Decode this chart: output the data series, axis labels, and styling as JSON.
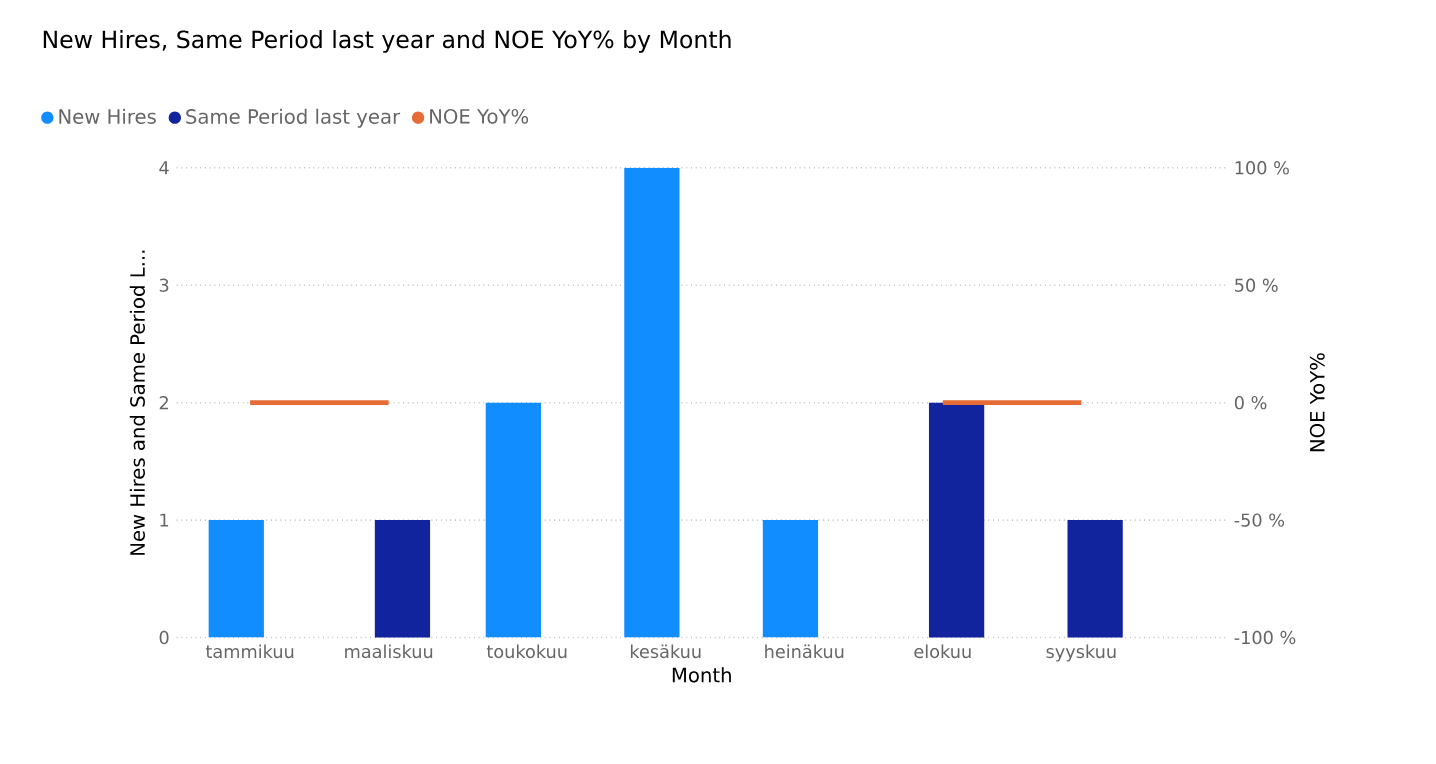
{
  "chart_data": {
    "type": "bar",
    "title": "New Hires, Same Period last year and NOE YoY% by Month",
    "xlabel": "Month",
    "ylabel": "New Hires and Same Period L...",
    "y2label": "NOE YoY%",
    "categories": [
      "tammikuu",
      "maaliskuu",
      "toukokuu",
      "kesäkuu",
      "heinäkuu",
      "elokuu",
      "syyskuu"
    ],
    "series": [
      {
        "name": "New Hires",
        "color": "#118dff",
        "values": [
          1,
          null,
          2,
          4,
          1,
          null,
          null
        ]
      },
      {
        "name": "Same Period last year",
        "color": "#12239e",
        "values": [
          null,
          1,
          null,
          null,
          null,
          2,
          1
        ]
      },
      {
        "name": "NOE YoY%",
        "type": "line",
        "axis": "y2",
        "color": "#e66c37",
        "values": [
          0,
          0,
          null,
          null,
          null,
          0,
          0
        ]
      }
    ],
    "ylim": [
      0,
      4
    ],
    "yticks": [
      0,
      1,
      2,
      3,
      4
    ],
    "y2lim": [
      -100,
      100
    ],
    "y2ticks": [
      {
        "value": -100,
        "label": "-100 %"
      },
      {
        "value": -50,
        "label": "-50 %"
      },
      {
        "value": 0,
        "label": "0 %"
      },
      {
        "value": 50,
        "label": "50 %"
      },
      {
        "value": 100,
        "label": "100 %"
      }
    ],
    "grid": "y",
    "legend": "top left",
    "marker": "none",
    "line_style": "solid"
  }
}
